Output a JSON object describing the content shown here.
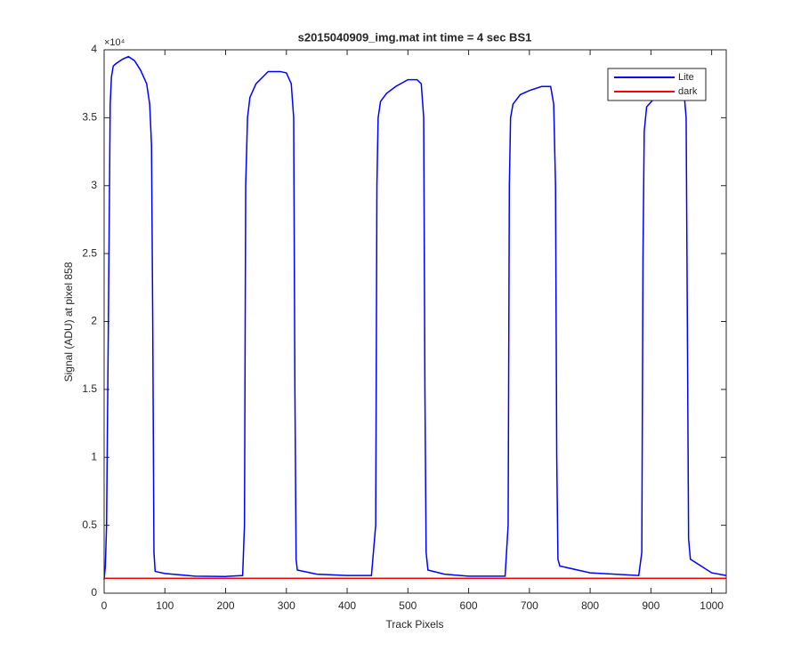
{
  "chart_data": {
    "type": "line",
    "title": "s2015040909_img.mat int time = 4 sec   BS1",
    "x_label": "Track Pixels",
    "y_label": "Signal (ADU) at pixel 858",
    "y_multiplier": "×10⁴",
    "xlim": [
      0,
      1024
    ],
    "xticks": [
      0,
      100,
      200,
      300,
      400,
      500,
      600,
      700,
      800,
      900,
      1000
    ],
    "ylim": [
      0,
      40000
    ],
    "yticks": [
      0,
      {
        "value": 5000,
        "label": "0.5"
      },
      {
        "value": 10000,
        "label": "1"
      },
      {
        "value": 15000,
        "label": "1.5"
      },
      {
        "value": 20000,
        "label": "2"
      },
      {
        "value": 25000,
        "label": "2.5"
      },
      {
        "value": 30000,
        "label": "3"
      },
      {
        "value": 35000,
        "label": "3.5"
      },
      {
        "value": 40000,
        "label": "4"
      }
    ],
    "legend": "northeast",
    "series": [
      {
        "name": "Lite",
        "color": "#0000ff",
        "x": [
          0,
          2,
          4,
          7,
          10,
          12,
          15,
          20,
          30,
          40,
          50,
          60,
          70,
          75,
          78,
          80,
          82,
          84,
          100,
          150,
          200,
          228,
          231,
          233,
          236,
          240,
          250,
          270,
          290,
          300,
          308,
          312,
          314,
          316,
          318,
          350,
          400,
          440,
          447,
          449,
          451,
          455,
          465,
          480,
          500,
          515,
          522,
          526,
          528,
          530,
          533,
          560,
          600,
          660,
          665,
          667,
          669,
          673,
          685,
          700,
          720,
          735,
          740,
          743,
          745,
          747,
          750,
          800,
          880,
          885,
          887,
          889,
          893,
          905,
          930,
          955,
          958,
          960,
          962,
          965,
          1000,
          1024
        ],
        "values": [
          1000,
          2000,
          5000,
          20000,
          36000,
          38000,
          38800,
          39000,
          39300,
          39500,
          39200,
          38500,
          37500,
          36000,
          33000,
          20000,
          3000,
          1600,
          1450,
          1250,
          1230,
          1300,
          5000,
          30000,
          35000,
          36500,
          37500,
          38400,
          38400,
          38300,
          37500,
          35000,
          15000,
          2500,
          1700,
          1400,
          1300,
          1300,
          5000,
          30000,
          35000,
          36200,
          36800,
          37300,
          37800,
          37800,
          37500,
          35000,
          15000,
          3000,
          1700,
          1400,
          1250,
          1250,
          5000,
          30000,
          35000,
          36000,
          36700,
          37000,
          37300,
          37300,
          36000,
          30000,
          10000,
          2500,
          2000,
          1500,
          1300,
          3000,
          25000,
          34000,
          35800,
          36400,
          36500,
          36600,
          35000,
          20000,
          4000,
          2500,
          1500,
          1300
        ]
      },
      {
        "name": "dark",
        "color": "#ff0000",
        "x": [
          0,
          1024
        ],
        "values": [
          1100,
          1100
        ]
      }
    ]
  }
}
